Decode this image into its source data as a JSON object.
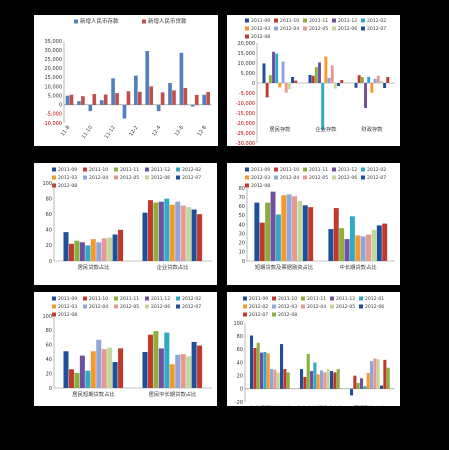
{
  "colors": {
    "deposit": "#4F81BD",
    "loan": "#C0504D",
    "months": [
      "#1F4E9A",
      "#C0392B",
      "#8BAE3E",
      "#6F4FA0",
      "#2FA9C6",
      "#F39A2E",
      "#8EA7D8",
      "#E69892",
      "#C4D79B"
    ]
  },
  "month_labels": [
    "2011-09",
    "2011-10",
    "2011-11",
    "2011-12",
    "2012-02",
    "2012-03",
    "2012-04",
    "2012-05",
    "2012-06",
    "2012-07",
    "2012-08"
  ],
  "chart_data": [
    {
      "type": "bar",
      "legend": [
        "新增人民币存款",
        "新增人民币贷款"
      ],
      "categories": [
        "11-8",
        "11-9",
        "11-10",
        "11-11",
        "11-12",
        "12-1",
        "12-2",
        "12-3",
        "12-4",
        "12-5",
        "12-6",
        "12-7",
        "12-8"
      ],
      "tick_labels": [
        "11-8",
        "",
        "11-10",
        "",
        "11-12",
        "",
        "12-2",
        "",
        "12-4",
        "",
        "12-6",
        "",
        "12-8"
      ],
      "series": [
        {
          "name": "新增人民币存款",
          "values": [
            5000,
            2000,
            -3500,
            2500,
            14500,
            -7500,
            16000,
            29500,
            -3500,
            12000,
            28500,
            -1000,
            5500
          ]
        },
        {
          "name": "新增人民币贷款",
          "values": [
            5500,
            4700,
            5900,
            5600,
            6400,
            7400,
            7100,
            10100,
            6800,
            7900,
            9200,
            5400,
            7000
          ]
        }
      ],
      "ylim": [
        -10000,
        35000
      ],
      "yticks": [
        35000,
        30000,
        25000,
        20000,
        15000,
        10000,
        5000,
        0,
        -5000,
        -10000
      ],
      "ytick_labels": [
        "35,000",
        "30,000",
        "25,000",
        "20,000",
        "15,000",
        "10,000",
        "5,000",
        "0",
        "-5,000",
        "-10,000"
      ]
    },
    {
      "type": "bar",
      "legend": [
        "2011-09",
        "2011-10",
        "2011-11",
        "2011-12",
        "2012-02",
        "2012-03",
        "2012-04",
        "2012-05",
        "2012-06",
        "2012-07",
        "2012-08"
      ],
      "categories": [
        "居民存款",
        "企业存款",
        "财政存款"
      ],
      "series": [
        {
          "name": "2011-09",
          "values": [
            9800,
            4000,
            -2400
          ]
        },
        {
          "name": "2011-10",
          "values": [
            -7200,
            3600,
            3900
          ]
        },
        {
          "name": "2011-11",
          "values": [
            3900,
            7900,
            3000
          ]
        },
        {
          "name": "2011-12",
          "values": [
            15600,
            10300,
            -12500
          ]
        },
        {
          "name": "2012-02",
          "values": [
            14700,
            -23500,
            3100
          ]
        },
        {
          "name": "2012-03",
          "values": [
            -2200,
            13200,
            -4900
          ]
        },
        {
          "name": "2012-04",
          "values": [
            10700,
            2500,
            2100
          ]
        },
        {
          "name": "2012-05",
          "values": [
            -4800,
            8800,
            3600
          ]
        },
        {
          "name": "2012-06",
          "values": [
            -3100,
            -2800,
            1000
          ]
        },
        {
          "name": "2012-07",
          "values": [
            3000,
            -1500,
            -2500
          ]
        },
        {
          "name": "2012-08",
          "values": [
            1200,
            1500,
            3000
          ]
        }
      ],
      "ylim": [
        -30000,
        20000
      ],
      "yticks": [
        20000,
        15000,
        10000,
        5000,
        0,
        -5000,
        -10000,
        -15000,
        -20000,
        -25000,
        -30000
      ],
      "ytick_labels": [
        "20,000",
        "15,000",
        "10,000",
        "5,000",
        "0",
        "-5,000",
        "-10,000",
        "-15,000",
        "-20,000",
        "-25,000",
        "-30,000"
      ]
    },
    {
      "type": "bar",
      "legend": [
        "2011-09",
        "2011-10",
        "2011-11",
        "2011-12",
        "2012-02",
        "2012-03",
        "2012-04",
        "2012-05",
        "2012-06",
        "2012-07",
        "2012-08"
      ],
      "categories": [
        "居民贷款占比",
        "企业贷款占比"
      ],
      "series": [
        {
          "name": "2011-09",
          "values": [
            37,
            62
          ]
        },
        {
          "name": "2011-10",
          "values": [
            22,
            78
          ]
        },
        {
          "name": "2011-11",
          "values": [
            26,
            75
          ]
        },
        {
          "name": "2011-12",
          "values": [
            24,
            76
          ]
        },
        {
          "name": "2012-02",
          "values": [
            20,
            80
          ]
        },
        {
          "name": "2012-03",
          "values": [
            28,
            72
          ]
        },
        {
          "name": "2012-04",
          "values": [
            24,
            76
          ]
        },
        {
          "name": "2012-05",
          "values": [
            29,
            71
          ]
        },
        {
          "name": "2012-06",
          "values": [
            30,
            69
          ]
        },
        {
          "name": "2012-07",
          "values": [
            34,
            66
          ]
        },
        {
          "name": "2012-08",
          "values": [
            40,
            60
          ]
        }
      ],
      "ylim": [
        0,
        100
      ],
      "yticks": [
        100,
        80,
        60,
        40,
        20,
        0
      ],
      "ytick_labels": [
        "100",
        "80",
        "60",
        "40",
        "20",
        "0"
      ]
    },
    {
      "type": "bar",
      "legend": [
        "2011-09",
        "2011-10",
        "2011-11",
        "2011-12",
        "2012-02",
        "2012-03",
        "2012-04",
        "2012-05",
        "2012-06",
        "2012-07",
        "2012-08"
      ],
      "categories": [
        "短期贷款及票据融资占比",
        "中长期贷款占比"
      ],
      "series": [
        {
          "name": "2011-09",
          "values": [
            64,
            35
          ]
        },
        {
          "name": "2011-10",
          "values": [
            42,
            58
          ]
        },
        {
          "name": "2011-11",
          "values": [
            64,
            36
          ]
        },
        {
          "name": "2011-12",
          "values": [
            76,
            24
          ]
        },
        {
          "name": "2012-02",
          "values": [
            51,
            49
          ]
        },
        {
          "name": "2012-03",
          "values": [
            72,
            28
          ]
        },
        {
          "name": "2012-04",
          "values": [
            73,
            27
          ]
        },
        {
          "name": "2012-05",
          "values": [
            71,
            29
          ]
        },
        {
          "name": "2012-06",
          "values": [
            66,
            34
          ]
        },
        {
          "name": "2012-07",
          "values": [
            61,
            39
          ]
        },
        {
          "name": "2012-08",
          "values": [
            59,
            41
          ]
        }
      ],
      "ylim": [
        0,
        80
      ],
      "yticks": [
        80,
        70,
        60,
        50,
        40,
        30,
        20,
        10,
        0
      ],
      "ytick_labels": [
        "80",
        "70",
        "60",
        "50",
        "40",
        "30",
        "20",
        "10",
        "0"
      ]
    },
    {
      "type": "bar",
      "legend": [
        "2011-09",
        "2011-10",
        "2011-11",
        "2011-12",
        "2012-02",
        "2012-03",
        "2012-04",
        "2012-05",
        "2012-06",
        "2012-07",
        "2012-08"
      ],
      "categories": [
        "居民短期贷款占比",
        "居民中长期贷款占比"
      ],
      "series": [
        {
          "name": "2011-09",
          "values": [
            51,
            50
          ]
        },
        {
          "name": "2011-10",
          "values": [
            26,
            74
          ]
        },
        {
          "name": "2011-11",
          "values": [
            21,
            79
          ]
        },
        {
          "name": "2011-12",
          "values": [
            45,
            55
          ]
        },
        {
          "name": "2012-02",
          "values": [
            24,
            77
          ]
        },
        {
          "name": "2012-03",
          "values": [
            51,
            33
          ]
        },
        {
          "name": "2012-04",
          "values": [
            67,
            46
          ]
        },
        {
          "name": "2012-05",
          "values": [
            54,
            47
          ]
        },
        {
          "name": "2012-06",
          "values": [
            56,
            44
          ]
        },
        {
          "name": "2012-07",
          "values": [
            36,
            64
          ]
        },
        {
          "name": "2012-08",
          "values": [
            55,
            59
          ]
        }
      ],
      "ylim": [
        0,
        100
      ],
      "yticks": [
        100,
        80,
        60,
        40,
        20,
        0
      ],
      "ytick_labels": [
        "100",
        "80",
        "60",
        "40",
        "20",
        "0"
      ]
    },
    {
      "type": "bar",
      "legend": [
        "2011-09",
        "2011-10",
        "2011-11",
        "2011-12",
        "2012-01",
        "2012-02",
        "2012-03",
        "2012-04",
        "2012-05",
        "2012-06",
        "2012-07",
        "2012-08"
      ],
      "categories": [
        "企业短期贷款占比",
        "企业中长期贷款占比",
        "票据融资占比"
      ],
      "series": [
        {
          "name": "2011-09",
          "values": [
            81,
            30,
            -10
          ]
        },
        {
          "name": "2011-10",
          "values": [
            62,
            18,
            20
          ]
        },
        {
          "name": "2011-11",
          "values": [
            70,
            53,
            9
          ]
        },
        {
          "name": "2011-12",
          "values": [
            55,
            27,
            16
          ]
        },
        {
          "name": "2012-01",
          "values": [
            56,
            40,
            4
          ]
        },
        {
          "name": "2012-02",
          "values": [
            54,
            22,
            24
          ]
        },
        {
          "name": "2012-03",
          "values": [
            30,
            28,
            42
          ]
        },
        {
          "name": "2012-04",
          "values": [
            29,
            25,
            46
          ]
        },
        {
          "name": "2012-05",
          "values": [
            25,
            30,
            45
          ]
        },
        {
          "name": "2012-06",
          "values": [
            68,
            27,
            5
          ]
        },
        {
          "name": "2012-07",
          "values": [
            30,
            25,
            44
          ]
        },
        {
          "name": "2012-08",
          "values": [
            25,
            30,
            32
          ]
        }
      ],
      "ylim": [
        -20,
        100
      ],
      "yticks": [
        100,
        80,
        60,
        40,
        20,
        0,
        -20
      ],
      "ytick_labels": [
        "100",
        "80",
        "60",
        "40",
        "20",
        "0",
        "-20"
      ]
    }
  ]
}
